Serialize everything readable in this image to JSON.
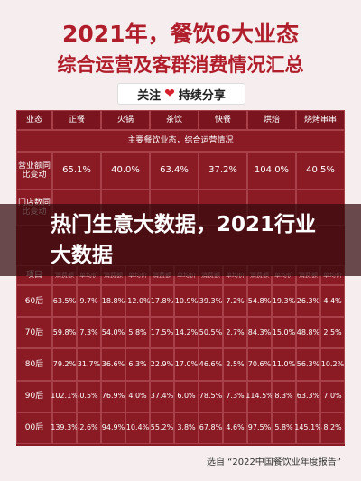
{
  "header": {
    "title_line1": "2021年，餐饮6大业态",
    "title_line2": "综合运营及客群消费情况汇总",
    "follow": "关注",
    "share": "持续分享"
  },
  "table": {
    "columns": [
      "业态",
      "正餐",
      "火锅",
      "茶饮",
      "快餐",
      "烘焙",
      "烧烤串串"
    ],
    "section": "主要餐饮业态，综合运营情况",
    "revenue": {
      "label": "营业额同比变动",
      "values": [
        "65.1%",
        "40.0%",
        "63.4%",
        "37.2%",
        "104.0%",
        "40.5%"
      ]
    },
    "stores": {
      "label": "门店数同比变动"
    },
    "sub_header": [
      "项目",
      "消费额",
      "单均价",
      "消费额",
      "单均价",
      "消费额",
      "单均价",
      "消费额",
      "单均价",
      "消费额",
      "单均价",
      "消费额",
      "单均价"
    ],
    "rows": [
      [
        "60后",
        "63.5%",
        "9.7%",
        "18.8%",
        "-12.0%",
        "17.8%",
        "10.9%",
        "39.3%",
        "7.2%",
        "54.8%",
        "19.3%",
        "26.3%",
        "4.4%"
      ],
      [
        "70后",
        "59.8%",
        "7.3%",
        "54.0%",
        "5.8%",
        "17.5%",
        "14.2%",
        "50.5%",
        "2.7%",
        "84.3%",
        "15.0%",
        "48.8%",
        "2.5%"
      ],
      [
        "80后",
        "79.2%",
        "31.7%",
        "36.6%",
        "6.3%",
        "22.9%",
        "17.0%",
        "46.6%",
        "2.5%",
        "70.6%",
        "11.0%",
        "56.3%",
        "10.2%"
      ],
      [
        "90后",
        "102.1%",
        "0.5%",
        "76.9%",
        "4.0%",
        "37.4%",
        "6.0%",
        "78.5%",
        "7.3%",
        "114.5%",
        "8.3%",
        "63.3%",
        "7.0%"
      ],
      [
        "00后",
        "139.3%",
        "2.6%",
        "94.9%",
        "10.4%",
        "55.2%",
        "3.8%",
        "67.8%",
        "4.6%",
        "97.5%",
        "5.8%",
        "145.1%",
        "8.2%"
      ]
    ]
  },
  "overlay": "热门生意大数据，2021行业大数据",
  "footer": "选自 “2022中国餐饮业年度报告”"
}
